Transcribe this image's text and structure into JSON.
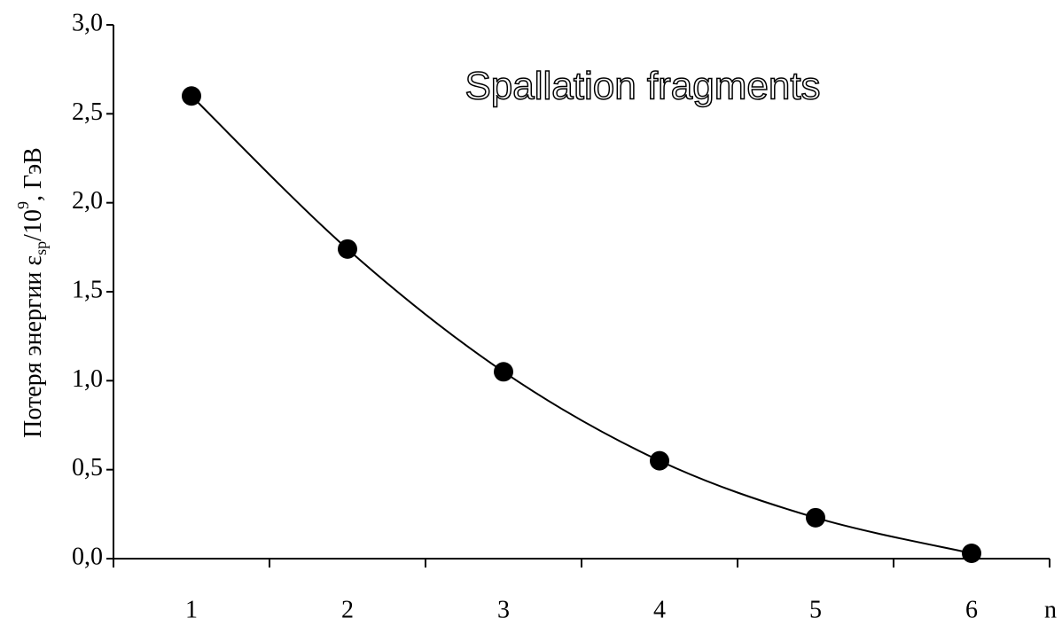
{
  "chart_data": {
    "type": "line",
    "title": "Spallation fragments",
    "y_label": [
      "Потеря энергии ε",
      "sp",
      "/10",
      "9",
      ", ГэВ"
    ],
    "x_label": "n",
    "categories": [
      "1",
      "2",
      "3",
      "4",
      "5",
      "6"
    ],
    "values": [
      2.6,
      1.74,
      1.05,
      0.55,
      0.23,
      0.03
    ],
    "color": "#000000",
    "ylim": [
      0,
      3
    ],
    "yticks": [
      {
        "value": 0,
        "label": "0,0"
      },
      {
        "value": 0.5,
        "label": "0,5"
      },
      {
        "value": 1,
        "label": "1,0"
      },
      {
        "value": 1.5,
        "label": "1,5"
      },
      {
        "value": 2,
        "label": "2,0"
      },
      {
        "value": 2.5,
        "label": "2,5"
      },
      {
        "value": 3,
        "label": "3,0"
      }
    ]
  }
}
